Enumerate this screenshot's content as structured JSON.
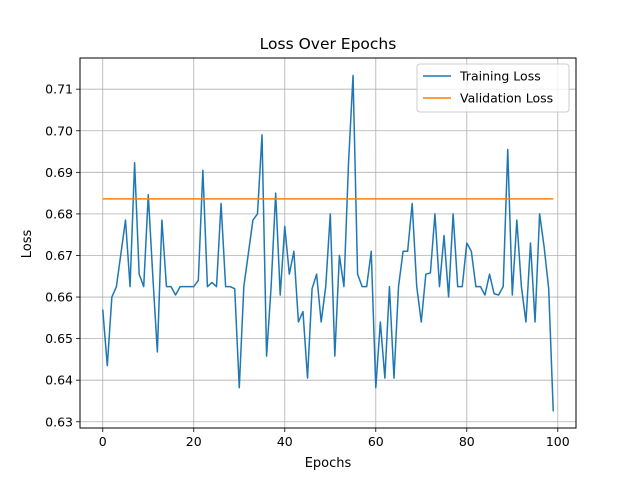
{
  "chart_data": {
    "type": "line",
    "title": "Loss Over Epochs",
    "xlabel": "Epochs",
    "ylabel": "Loss",
    "xlim": [
      -5,
      104
    ],
    "ylim": [
      0.6285,
      0.7175
    ],
    "xticks": [
      0,
      20,
      40,
      60,
      80,
      100
    ],
    "yticks": [
      0.63,
      0.64,
      0.65,
      0.66,
      0.67,
      0.68,
      0.69,
      0.7,
      0.71
    ],
    "ytick_labels": [
      "0.63",
      "0.64",
      "0.65",
      "0.66",
      "0.67",
      "0.68",
      "0.69",
      "0.70",
      "0.71"
    ],
    "grid": true,
    "legend_position": "top-right",
    "series": [
      {
        "name": "Training Loss",
        "color": "#1f77b4",
        "x": [
          0,
          1,
          2,
          3,
          4,
          5,
          6,
          7,
          8,
          9,
          10,
          11,
          12,
          13,
          14,
          15,
          16,
          17,
          18,
          19,
          20,
          21,
          22,
          23,
          24,
          25,
          26,
          27,
          28,
          29,
          30,
          31,
          32,
          33,
          34,
          35,
          36,
          37,
          38,
          39,
          40,
          41,
          42,
          43,
          44,
          45,
          46,
          47,
          48,
          49,
          50,
          51,
          52,
          53,
          54,
          55,
          56,
          57,
          58,
          59,
          60,
          61,
          62,
          63,
          64,
          65,
          66,
          67,
          68,
          69,
          70,
          71,
          72,
          73,
          74,
          75,
          76,
          77,
          78,
          79,
          80,
          81,
          82,
          83,
          84,
          85,
          86,
          87,
          88,
          89,
          90,
          91,
          92,
          93,
          94,
          95,
          96,
          97,
          98,
          99
        ],
        "values": [
          0.657,
          0.6435,
          0.66,
          0.6625,
          0.6705,
          0.6785,
          0.6625,
          0.6923,
          0.6655,
          0.6625,
          0.6846,
          0.665,
          0.6468,
          0.6785,
          0.6625,
          0.6625,
          0.6605,
          0.6625,
          0.6625,
          0.6625,
          0.6625,
          0.664,
          0.6905,
          0.6625,
          0.6635,
          0.6625,
          0.6825,
          0.6625,
          0.6625,
          0.662,
          0.6382,
          0.6625,
          0.6705,
          0.6785,
          0.68,
          0.699,
          0.6458,
          0.6625,
          0.685,
          0.6605,
          0.677,
          0.6655,
          0.671,
          0.654,
          0.6565,
          0.6405,
          0.662,
          0.6655,
          0.654,
          0.6625,
          0.68,
          0.6458,
          0.67,
          0.6625,
          0.692,
          0.7133,
          0.6655,
          0.6625,
          0.6625,
          0.671,
          0.6382,
          0.654,
          0.6405,
          0.6625,
          0.6405,
          0.6625,
          0.671,
          0.671,
          0.6825,
          0.6625,
          0.654,
          0.6655,
          0.6658,
          0.68,
          0.6625,
          0.6748,
          0.66,
          0.68,
          0.6625,
          0.6625,
          0.673,
          0.671,
          0.6625,
          0.6625,
          0.6605,
          0.6655,
          0.6608,
          0.6605,
          0.6625,
          0.6955,
          0.6605,
          0.6785,
          0.6625,
          0.654,
          0.673,
          0.654,
          0.68,
          0.672,
          0.662,
          0.6325
        ]
      },
      {
        "name": "Validation Loss",
        "color": "#ff7f0e",
        "x": [
          0,
          99
        ],
        "values": [
          0.6836,
          0.6836
        ]
      }
    ]
  }
}
